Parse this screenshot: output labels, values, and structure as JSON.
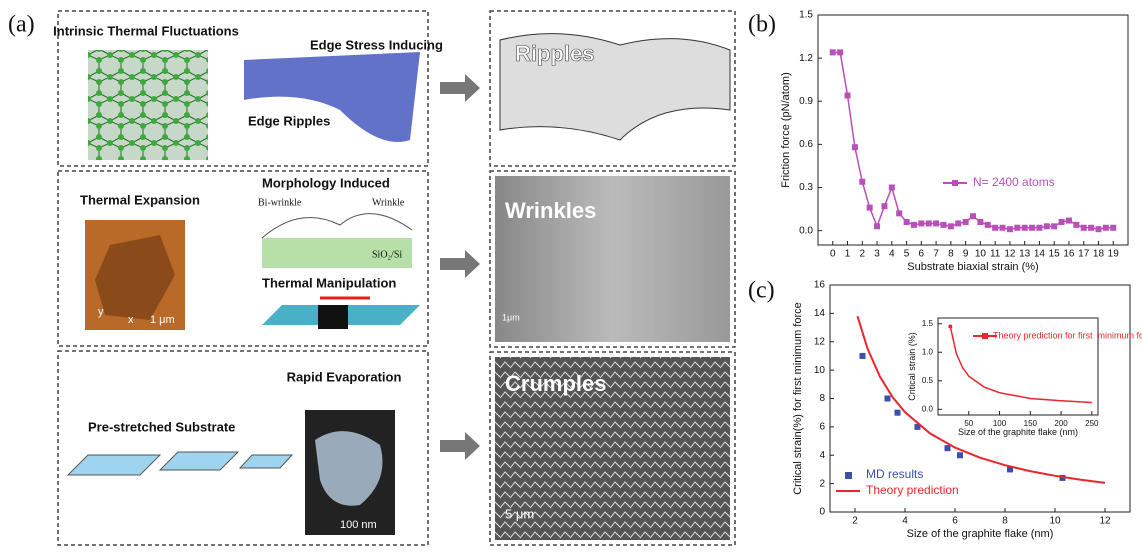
{
  "panel_labels": [
    "(a)",
    "(b)",
    "(c)"
  ],
  "panel_a": {
    "ripple_sources": {
      "thermal": "Intrinsic Thermal Fluctuations",
      "edge_stress": "Edge Stress Inducing",
      "edge": "Edge Ripples"
    },
    "wrinkle_sources": {
      "expansion": "Thermal Expansion",
      "morphology": "Morphology Induced",
      "bi_wrinkle": "Bi-wrinkle",
      "wrinkle": "Wrinkle",
      "substrate": "SiO₂/Si",
      "manipulation": "Thermal Manipulation",
      "scale": "1 μm",
      "axis_y": "y",
      "axis_x": "x"
    },
    "crumple_sources": {
      "prestretched": "Pre-stretched Substrate",
      "evaporation": "Rapid Evaporation",
      "scale": "100 nm"
    },
    "results": {
      "ripples": "Ripples",
      "wrinkles": "Wrinkles",
      "wrinkle_scale": "1μm",
      "crumples": "Crumples",
      "crumple_scale": "5 μm"
    }
  },
  "chart_data": [
    {
      "type": "line",
      "x_label": "Substrate biaxial  strain (%)",
      "y_label": "Friction force (pN/atom)",
      "x": [
        0,
        0.5,
        1,
        1.5,
        2,
        2.5,
        3,
        3.5,
        4,
        4.5,
        5,
        5.5,
        6,
        6.5,
        7,
        7.5,
        8,
        8.5,
        9,
        9.5,
        10,
        10.5,
        11,
        11.5,
        12,
        12.5,
        13,
        13.5,
        14,
        14.5,
        15,
        15.5,
        16,
        16.5,
        17,
        17.5,
        18,
        18.5,
        19
      ],
      "series": [
        {
          "name": "N= 2400 atoms",
          "color": "#b94fb9",
          "marker": "square",
          "values": [
            1.24,
            1.24,
            0.94,
            0.58,
            0.34,
            0.16,
            0.03,
            0.17,
            0.3,
            0.12,
            0.06,
            0.04,
            0.05,
            0.05,
            0.05,
            0.04,
            0.03,
            0.05,
            0.06,
            0.1,
            0.06,
            0.04,
            0.02,
            0.02,
            0.01,
            0.02,
            0.02,
            0.02,
            0.02,
            0.03,
            0.03,
            0.06,
            0.07,
            0.04,
            0.02,
            0.02,
            0.01,
            0.02,
            0.02
          ]
        }
      ],
      "xlim": [
        -1,
        20
      ],
      "ylim": [
        -0.1,
        1.5
      ],
      "xticks": [
        0,
        1,
        2,
        3,
        4,
        5,
        6,
        7,
        8,
        9,
        10,
        11,
        12,
        13,
        14,
        15,
        16,
        17,
        18,
        19
      ],
      "yticks": [
        {
          "value": 0,
          "label": "0.0"
        },
        0.3,
        0.6,
        0.9,
        1.2,
        1.5
      ],
      "legend": "center right"
    },
    {
      "type": "combo",
      "x_label": "Size of the graphite flake (nm)",
      "y_label": "Critical strain(%) for first minimum force",
      "series": [
        {
          "name": "MD results",
          "type": "scatter",
          "color": "#3a4fb0",
          "x": [
            2.3,
            3.3,
            3.7,
            4.5,
            5.7,
            6.2,
            8.2,
            10.3
          ],
          "values": [
            11,
            8,
            7,
            6,
            4.5,
            4,
            3,
            2.4
          ]
        },
        {
          "name": "Theory prediction",
          "type": "line",
          "color": "#e8262b",
          "x": [
            2.1,
            2.5,
            3,
            3.5,
            4,
            5,
            6,
            7,
            8,
            9,
            10,
            11,
            12
          ],
          "values": [
            13.8,
            11.52,
            9.53,
            8.1,
            7.04,
            5.54,
            4.54,
            3.83,
            3.3,
            2.88,
            2.55,
            2.28,
            2.05
          ]
        }
      ],
      "xlim": [
        1,
        13
      ],
      "ylim": [
        0,
        16
      ],
      "xticks": [
        2,
        4,
        6,
        8,
        10,
        12
      ],
      "yticks": [
        0,
        2,
        4,
        6,
        8,
        10,
        12,
        14,
        16
      ],
      "legend": "lower left"
    },
    {
      "type": "line",
      "x_label": "Size of the graphite flake (nm)",
      "y_label": "Critical strain (%)",
      "x": [
        20,
        30,
        40,
        50,
        75,
        100,
        150,
        200,
        250
      ],
      "series": [
        {
          "name": "Theory prediction for first  minimum force",
          "color": "#e8262b",
          "marker": "circle-first",
          "values": [
            1.45,
            0.97,
            0.73,
            0.58,
            0.39,
            0.29,
            0.19,
            0.15,
            0.12
          ]
        }
      ],
      "xlim": [
        0,
        260
      ],
      "ylim": [
        -0.1,
        1.6
      ],
      "xticks": [
        50,
        100,
        150,
        200,
        250
      ],
      "yticks": [
        {
          "value": 0,
          "label": "0.0"
        },
        0.5,
        {
          "value": 1,
          "label": "1.0"
        },
        1.5
      ],
      "legend": "upper right"
    }
  ]
}
